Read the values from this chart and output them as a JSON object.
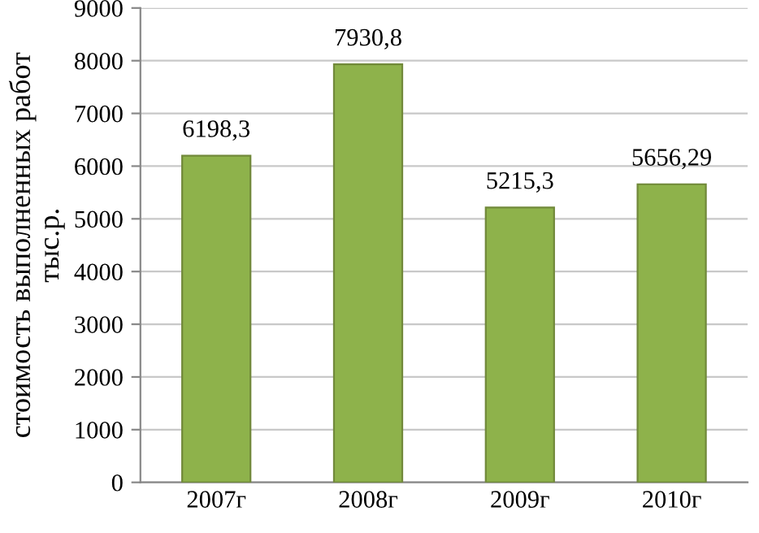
{
  "chart_data": {
    "type": "bar",
    "ylabel": "стоимость выполненных работ\nтыс.р.",
    "categories": [
      "2007г",
      "2008г",
      "2009г",
      "2010г"
    ],
    "values": [
      6198.3,
      7930.8,
      5215.3,
      5656.29
    ],
    "value_labels": [
      "6198,3",
      "7930,8",
      "5215,3",
      "5656,29"
    ],
    "color": "#8eb24b",
    "ylim": [
      0,
      9000
    ],
    "yticks": [
      0,
      1000,
      2000,
      3000,
      4000,
      5000,
      6000,
      7000,
      8000,
      9000
    ],
    "grid": "y"
  }
}
